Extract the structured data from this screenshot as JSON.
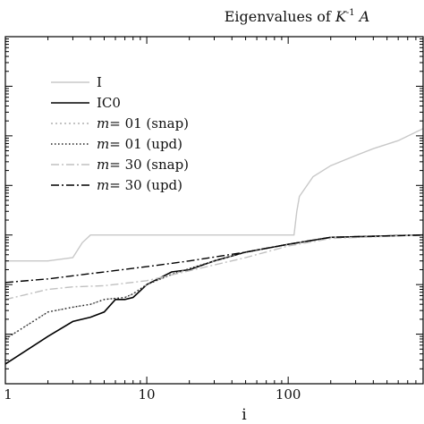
{
  "chart_data": {
    "type": "line",
    "title": "Eigenvalues of K⁻¹ A",
    "title_parts": {
      "prefix": "Eigenvalues of ",
      "k": "K",
      "sup": "-1",
      "a": " A"
    },
    "xlabel": "i",
    "ylabel": "",
    "x_scale": "log",
    "y_scale": "log",
    "xlim": [
      1,
      900
    ],
    "ylim": [
      0.0001,
      1000
    ],
    "x_ticks": [
      {
        "value": 1,
        "label": "1"
      },
      {
        "value": 10,
        "label": "10"
      },
      {
        "value": 100,
        "label": "100"
      }
    ],
    "y_major_ticks": [
      0.0001,
      0.001,
      0.01,
      0.1,
      1,
      10,
      100,
      1000
    ],
    "grid": false,
    "legend_position": "upper-left",
    "series": [
      {
        "name": "I",
        "name_parts": {
          "m": "",
          "rest": "I"
        },
        "color": "#c8c8c8",
        "dash": "",
        "x": [
          1,
          2,
          3,
          3.5,
          4,
          10,
          100,
          110,
          115,
          120,
          150,
          200,
          300,
          400,
          600,
          900
        ],
        "y": [
          0.03,
          0.03,
          0.035,
          0.07,
          0.1,
          0.1,
          0.1,
          0.1,
          0.3,
          0.6,
          1.5,
          2.5,
          4,
          5.5,
          8,
          14
        ]
      },
      {
        "name": "IC0",
        "name_parts": {
          "m": "",
          "rest": "IC0"
        },
        "color": "#000000",
        "dash": "",
        "x": [
          1,
          2,
          3,
          4,
          5,
          6,
          7,
          8,
          9,
          10,
          12,
          15,
          20,
          30,
          50,
          100,
          200,
          900
        ],
        "y": [
          0.00025,
          0.0009,
          0.0018,
          0.0022,
          0.0028,
          0.005,
          0.005,
          0.0055,
          0.0075,
          0.01,
          0.013,
          0.018,
          0.02,
          0.03,
          0.045,
          0.065,
          0.09,
          0.1
        ]
      },
      {
        "name": "m= 01 (snap)",
        "name_parts": {
          "m": "m",
          "rest": "= 01 (snap)"
        },
        "color": "#b0b0b0",
        "dash": "2,3",
        "x": [
          1,
          2,
          3,
          4,
          5,
          7,
          8,
          10,
          15,
          20,
          30,
          50,
          100,
          200,
          900
        ],
        "y": [
          0.0008,
          0.0028,
          0.0035,
          0.004,
          0.005,
          0.0055,
          0.0065,
          0.01,
          0.016,
          0.021,
          0.03,
          0.045,
          0.065,
          0.09,
          0.1
        ]
      },
      {
        "name": "m= 01 (upd)",
        "name_parts": {
          "m": "m",
          "rest": "= 01 (upd)"
        },
        "color": "#222222",
        "dash": "1.5,2.5",
        "x": [
          1,
          2,
          3,
          4,
          5,
          7,
          8,
          10,
          15,
          20,
          30,
          50,
          100,
          200,
          900
        ],
        "y": [
          0.0008,
          0.0028,
          0.0035,
          0.004,
          0.005,
          0.0055,
          0.0065,
          0.01,
          0.016,
          0.021,
          0.03,
          0.045,
          0.065,
          0.09,
          0.1
        ]
      },
      {
        "name": "m= 30 (snap)",
        "name_parts": {
          "m": "m",
          "rest": "= 30 (snap)"
        },
        "color": "#c0c0c0",
        "dash": "9,3,2,3",
        "x": [
          1,
          2,
          3,
          5,
          10,
          20,
          50,
          100,
          200,
          900
        ],
        "y": [
          0.005,
          0.008,
          0.009,
          0.0095,
          0.012,
          0.019,
          0.035,
          0.06,
          0.085,
          0.1
        ]
      },
      {
        "name": "m= 30 (upd)",
        "name_parts": {
          "m": "m",
          "rest": "= 30 (upd)"
        },
        "color": "#000000",
        "dash": "9,3,2,3",
        "x": [
          1,
          2,
          5,
          10,
          20,
          50,
          100,
          200,
          900
        ],
        "y": [
          0.011,
          0.013,
          0.018,
          0.023,
          0.03,
          0.045,
          0.065,
          0.09,
          0.1
        ]
      }
    ]
  }
}
